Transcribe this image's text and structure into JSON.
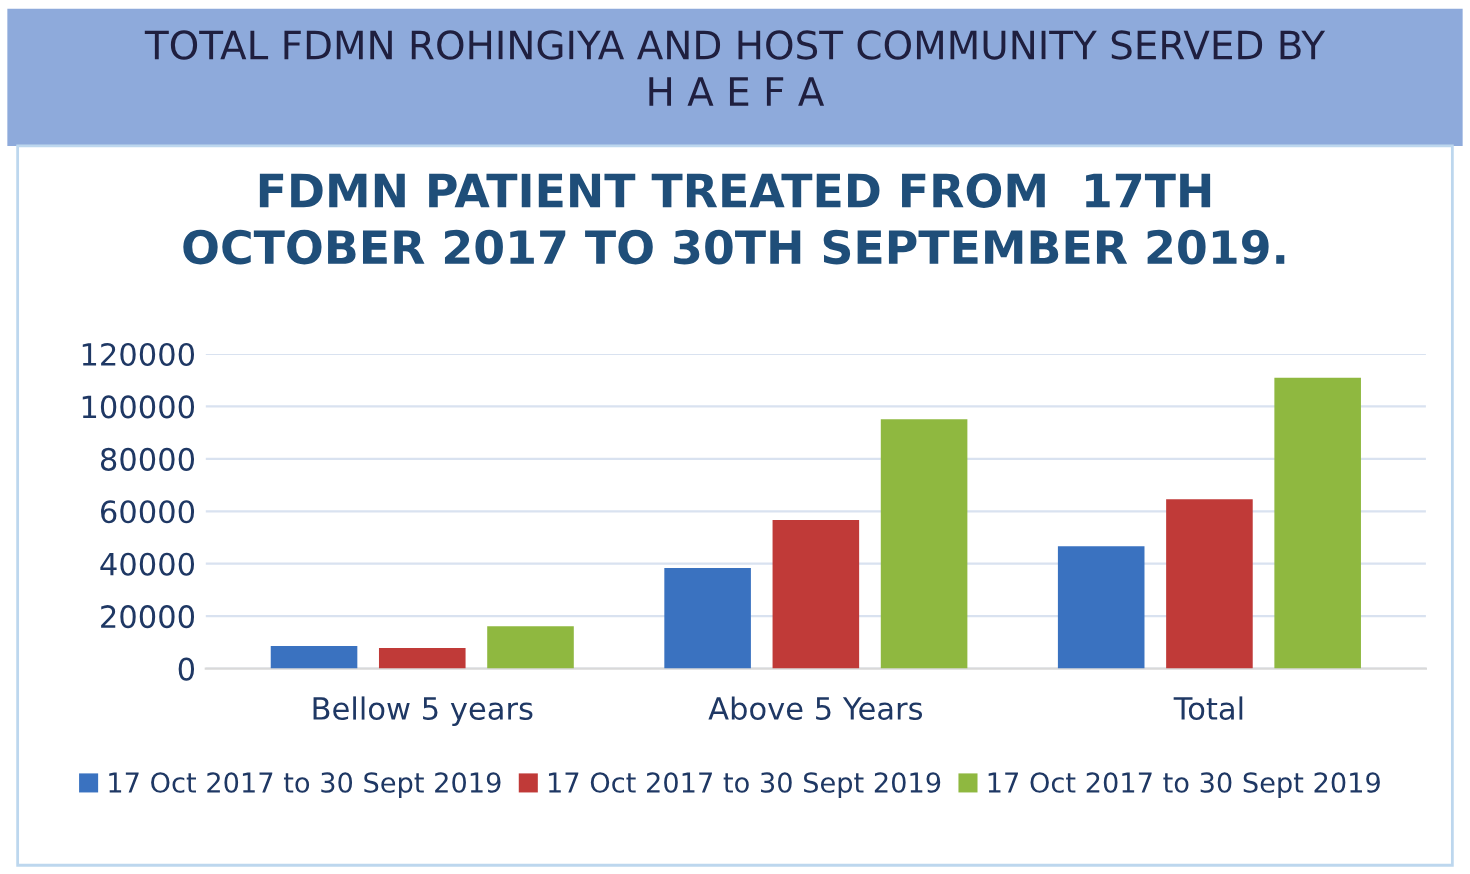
{
  "chart_data": {
    "type": "bar",
    "title": "TOTAL FDMN ROHINGIYA AND HOST COMMUNITY SERVED BY\nH A E F A",
    "subtitle": "FDMN PATIENT TREATED FROM  17TH\nOCTOBER 2017 TO 30TH SEPTEMBER 2019.",
    "categories": [
      "Bellow 5 years",
      "Above 5 Years",
      "Total"
    ],
    "series": [
      {
        "name": "17 Oct 2017 to 30 Sept 2019",
        "color": "#3a72c0",
        "values": [
          8600,
          38400,
          46700
        ]
      },
      {
        "name": "17 Oct 2017 to 30 Sept 2019",
        "color": "#c03a38",
        "values": [
          7900,
          56700,
          64600
        ]
      },
      {
        "name": "17 Oct 2017 to 30 Sept 2019",
        "color": "#8fb840",
        "values": [
          16200,
          95100,
          110900
        ]
      }
    ],
    "ylim": [
      0,
      120000
    ],
    "yticks": [
      0,
      20000,
      40000,
      60000,
      80000,
      100000,
      120000
    ],
    "grid": "y",
    "legend": "bottom"
  }
}
